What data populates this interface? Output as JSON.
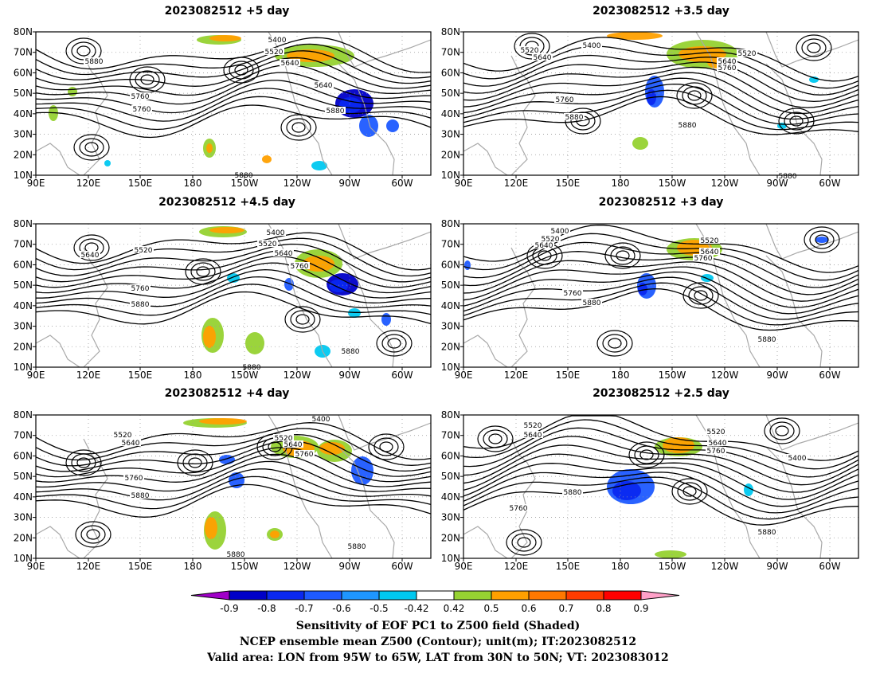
{
  "figure": {
    "panels": [
      {
        "id": "p5",
        "title": "2023082512 +5 day",
        "contour_labels": [
          "5400",
          "5520",
          "5640",
          "5640",
          "5760",
          "5760",
          "5880",
          "5880",
          "5880"
        ]
      },
      {
        "id": "p35",
        "title": "2023082512 +3.5 day",
        "contour_labels": [
          "5400",
          "5520",
          "5640",
          "5520",
          "5640",
          "5760",
          "5760",
          "5880",
          "5880",
          "5880"
        ]
      },
      {
        "id": "p45",
        "title": "2023082512 +4.5 day",
        "contour_labels": [
          "5400",
          "5520",
          "5640",
          "5520",
          "5640",
          "5760",
          "5760",
          "5880",
          "5880",
          "5880"
        ]
      },
      {
        "id": "p3",
        "title": "2023082512 +3 day",
        "contour_labels": [
          "5400",
          "5520",
          "5640",
          "5520",
          "5640",
          "5760",
          "5760",
          "5880",
          "5880"
        ]
      },
      {
        "id": "p4",
        "title": "2023082512 +4 day",
        "contour_labels": [
          "5400",
          "5520",
          "5640",
          "5520",
          "5640",
          "5760",
          "5760",
          "5880",
          "5880",
          "5880"
        ]
      },
      {
        "id": "p25",
        "title": "2023082512 +2.5 day",
        "contour_labels": [
          "5520",
          "5640",
          "5520",
          "5640",
          "5760",
          "5400",
          "5880",
          "5760",
          "5880"
        ]
      }
    ],
    "lat_ticks": [
      "80N",
      "70N",
      "60N",
      "50N",
      "40N",
      "30N",
      "20N",
      "10N"
    ],
    "lon_ticks": [
      "90E",
      "120E",
      "150E",
      "180",
      "150W",
      "120W",
      "90W",
      "60W"
    ],
    "colorbar": {
      "ticks": [
        "-0.9",
        "-0.8",
        "-0.7",
        "-0.6",
        "-0.5",
        "-0.42",
        "0.42",
        "0.5",
        "0.6",
        "0.7",
        "0.8",
        "0.9"
      ],
      "colors": [
        "#a000c8",
        "#0000c8",
        "#0a28f0",
        "#1e5aff",
        "#1e96ff",
        "#00c8f0",
        "#ffffff",
        "#96d232",
        "#ffa000",
        "#ff7800",
        "#ff3c00",
        "#ff0000",
        "#ffa0c8"
      ]
    },
    "footer": [
      "Sensitivity of EOF PC1 to Z500 field (Shaded)",
      "NCEP ensemble mean Z500 (Contour); unit(m); IT:2023082512",
      "Valid area: LON from 95W to 65W, LAT from 30N to 50N; VT: 2023083012"
    ]
  }
}
